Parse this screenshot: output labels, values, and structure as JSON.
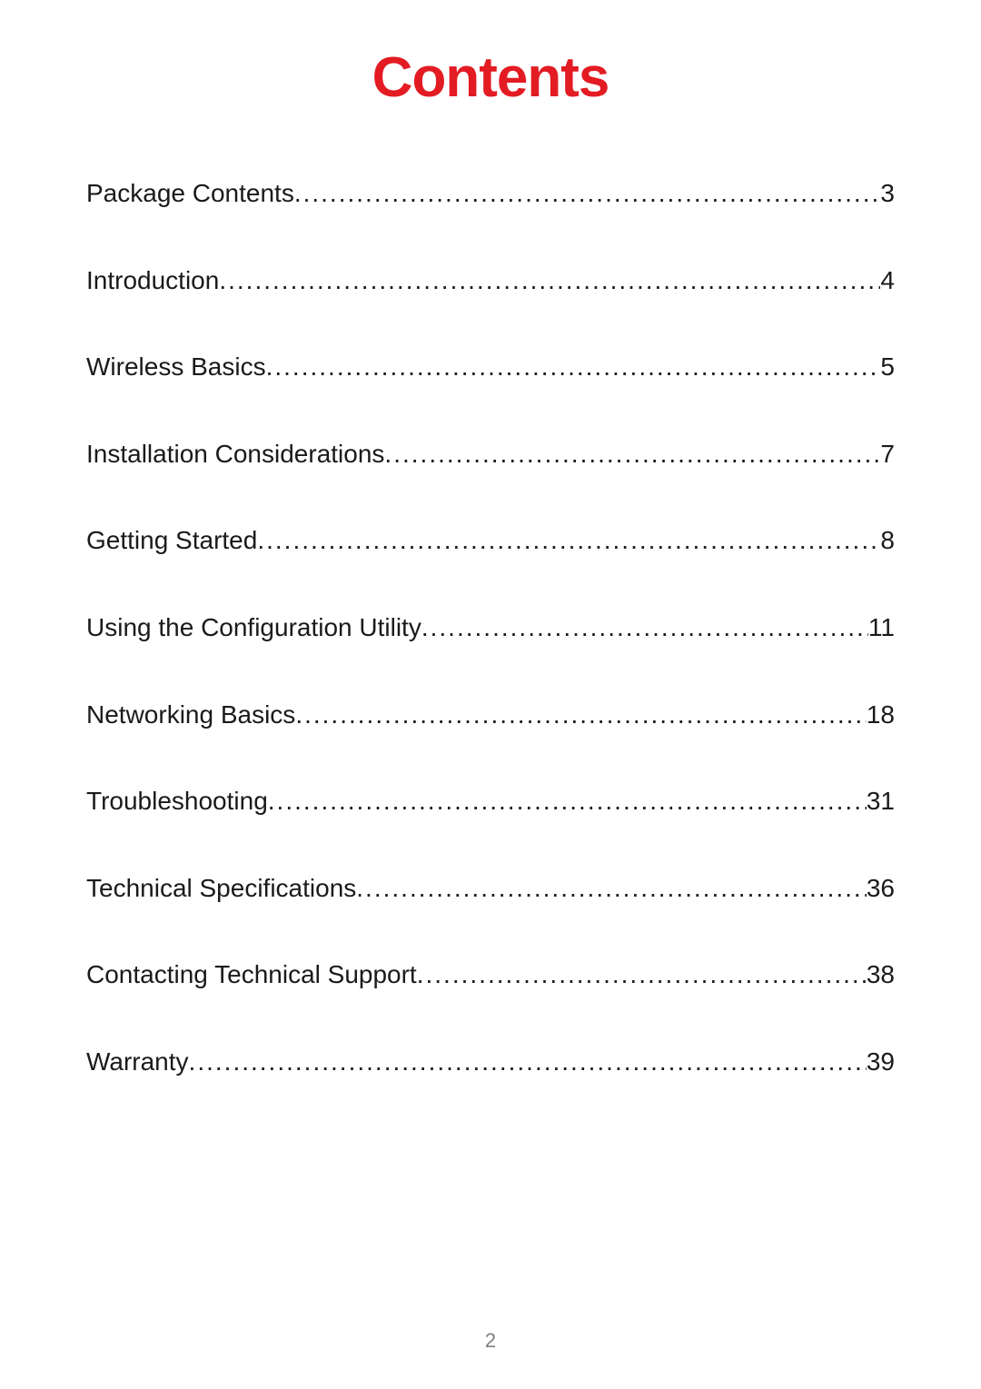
{
  "title": "Contents",
  "title_color": "#e31b23",
  "title_fontsize": 62,
  "entry_fontsize": 28,
  "text_color": "#1a1a1a",
  "background_color": "#ffffff",
  "entries": [
    {
      "label": "Package Contents",
      "page": "3"
    },
    {
      "label": "Introduction",
      "page": "4"
    },
    {
      "label": "Wireless Basics",
      "page": "5"
    },
    {
      "label": "Installation Considerations",
      "page": "7"
    },
    {
      "label": "Getting Started",
      "page": "8"
    },
    {
      "label": "Using the Configuration Utility",
      "page": "11"
    },
    {
      "label": "Networking Basics",
      "page": "18"
    },
    {
      "label": "Troubleshooting",
      "page": "31"
    },
    {
      "label": "Technical Specifications",
      "page": "36"
    },
    {
      "label": "Contacting Technical Support",
      "page": "38"
    },
    {
      "label": "Warranty",
      "page": "39"
    }
  ],
  "page_number": "2",
  "page_number_color": "#808080"
}
